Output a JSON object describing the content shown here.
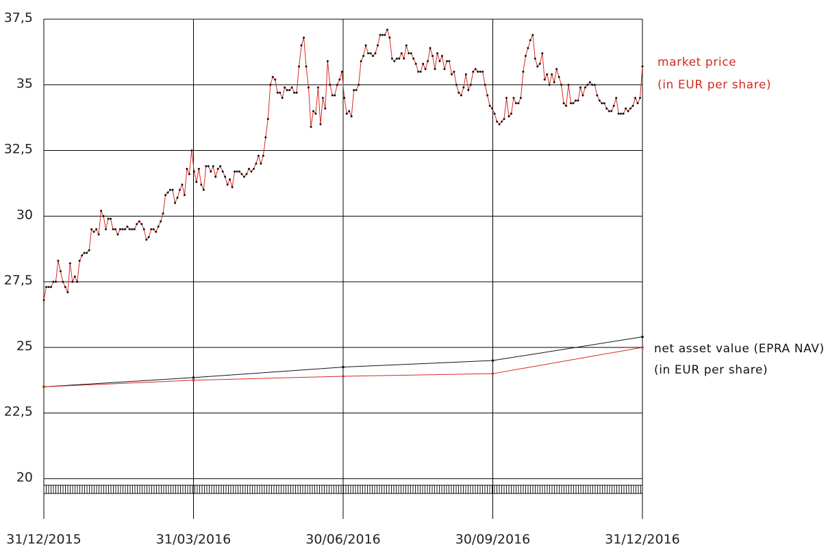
{
  "chart_data": {
    "type": "line",
    "title": "",
    "xlabel": "",
    "ylabel": "",
    "ylim": [
      19.75,
      37.5
    ],
    "grid": true,
    "y_ticks": [
      "20",
      "22,5",
      "25",
      "27,5",
      "30",
      "32,5",
      "35",
      "37,5"
    ],
    "y_tick_values": [
      20,
      22.5,
      25,
      27.5,
      30,
      32.5,
      35,
      37.5
    ],
    "x_ticks": [
      "31/12/2015",
      "31/03/2016",
      "30/06/2016",
      "30/09/2016",
      "31/12/2016"
    ],
    "colors": {
      "market": "#d6281f",
      "epra": "#111111",
      "nav": "#d6281f",
      "grid": "#000000"
    },
    "legend": {
      "market_line1": "market price",
      "market_line2": "(in EUR per share)",
      "nav_line1": "net asset value (EPRA NAV)",
      "nav_line2": "(in EUR per share)"
    },
    "series": [
      {
        "key": "market",
        "x_start": "31/12/2015",
        "x_end": "31/12/2016",
        "values": [
          26.8,
          27.3,
          27.3,
          27.3,
          27.5,
          27.5,
          28.3,
          27.9,
          27.5,
          27.3,
          27.1,
          28.2,
          27.5,
          27.7,
          27.5,
          28.3,
          28.5,
          28.6,
          28.6,
          28.7,
          29.5,
          29.4,
          29.5,
          29.3,
          30.2,
          30.0,
          29.5,
          29.9,
          29.9,
          29.5,
          29.5,
          29.3,
          29.5,
          29.5,
          29.5,
          29.6,
          29.5,
          29.5,
          29.5,
          29.7,
          29.8,
          29.7,
          29.5,
          29.1,
          29.2,
          29.5,
          29.5,
          29.4,
          29.6,
          29.8,
          30.1,
          30.8,
          30.9,
          31.0,
          31.0,
          30.5,
          30.7,
          31.0,
          31.2,
          30.8,
          31.8,
          31.6,
          32.5,
          31.7,
          31.3,
          31.8,
          31.2,
          31.0,
          31.9,
          31.9,
          31.7,
          31.9,
          31.5,
          31.8,
          31.9,
          31.7,
          31.5,
          31.2,
          31.4,
          31.1,
          31.7,
          31.7,
          31.7,
          31.6,
          31.5,
          31.6,
          31.8,
          31.7,
          31.8,
          32.0,
          32.3,
          32.0,
          32.3,
          33.0,
          33.7,
          35.0,
          35.3,
          35.2,
          34.7,
          34.7,
          34.5,
          34.9,
          34.8,
          34.8,
          34.9,
          34.7,
          34.7,
          35.7,
          36.5,
          36.8,
          35.7,
          34.9,
          33.4,
          34.0,
          33.9,
          34.9,
          33.5,
          34.5,
          34.1,
          35.9,
          35.0,
          34.6,
          34.6,
          35.0,
          35.2,
          35.5,
          34.5,
          33.9,
          34.0,
          33.8,
          34.8,
          34.8,
          35.0,
          35.9,
          36.1,
          36.5,
          36.2,
          36.2,
          36.1,
          36.2,
          36.5,
          36.9,
          36.9,
          36.9,
          37.1,
          36.8,
          36.0,
          35.9,
          36.0,
          36.0,
          36.2,
          36.0,
          36.5,
          36.2,
          36.2,
          36.0,
          35.8,
          35.5,
          35.5,
          35.8,
          35.6,
          35.9,
          36.4,
          36.1,
          35.6,
          36.2,
          35.9,
          36.1,
          35.6,
          35.9,
          35.9,
          35.4,
          35.5,
          35.0,
          34.7,
          34.6,
          34.9,
          35.4,
          34.8,
          35.0,
          35.5,
          35.6,
          35.5,
          35.5,
          35.5,
          35.0,
          34.6,
          34.2,
          34.1,
          33.9,
          33.6,
          33.5,
          33.6,
          33.7,
          34.5,
          33.8,
          33.9,
          34.5,
          34.3,
          34.3,
          34.5,
          35.5,
          36.1,
          36.4,
          36.7,
          36.9,
          36.0,
          35.7,
          35.8,
          36.2,
          35.2,
          35.4,
          35.0,
          35.4,
          35.1,
          35.6,
          35.3,
          35.0,
          34.3,
          34.2,
          35.0,
          34.3,
          34.3,
          34.4,
          34.4,
          34.9,
          34.6,
          34.9,
          35.0,
          35.1,
          35.0,
          35.0,
          34.6,
          34.4,
          34.3,
          34.3,
          34.1,
          34.0,
          34.0,
          34.2,
          34.5,
          33.9,
          33.9,
          33.9,
          34.1,
          34.0,
          34.1,
          34.2,
          34.5,
          34.3,
          34.5,
          35.7
        ]
      },
      {
        "key": "epra",
        "x": [
          "31/12/2015",
          "31/03/2016",
          "30/06/2016",
          "30/09/2016",
          "31/12/2016"
        ],
        "values": [
          23.5,
          23.85,
          24.25,
          24.5,
          25.4
        ]
      },
      {
        "key": "nav",
        "x": [
          "31/12/2015",
          "31/03/2016",
          "30/06/2016",
          "30/09/2016",
          "31/12/2016"
        ],
        "values": [
          23.5,
          23.75,
          23.9,
          24.0,
          25.0
        ]
      }
    ]
  }
}
